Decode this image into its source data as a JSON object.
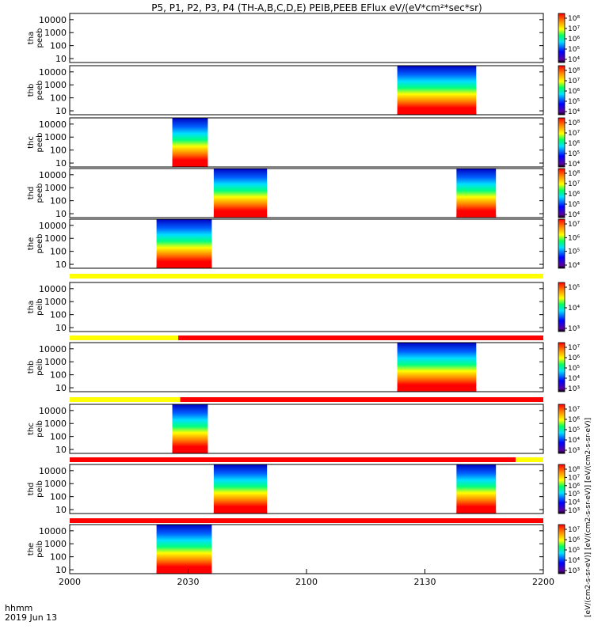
{
  "title": "P5, P1, P2, P3, P4 (TH-A,B,C,D,E) PEIB,PEEB EFlux eV/(eV*cm²*sec*sr)",
  "time_label": "hhmm",
  "date_label": "2019 Jun 13",
  "colorbar_unit_label": "[eV/(cm2-s-sr-eV)] [eV/(cm2-s-sr-eV)] [eV/(cm2-s-sr-eV)]",
  "chart_data": {
    "type": "heatmap",
    "x_axis": {
      "ticks": [
        "2000",
        "2030",
        "2100",
        "2130",
        "2200"
      ],
      "range_minutes": [
        0,
        120
      ],
      "tick_minutes": [
        0,
        30,
        60,
        90,
        120
      ]
    },
    "y_axis": {
      "scale": "log",
      "range": [
        5,
        30000
      ],
      "tick_labels": [
        "10",
        "100",
        "1000",
        "10000"
      ],
      "tick_values": [
        10,
        100,
        1000,
        10000
      ]
    },
    "colormap": "rainbow",
    "panels": [
      {
        "probe": "tha",
        "product": "peeb",
        "intervals": [],
        "cb_labels": [
          "10⁸",
          "10⁷",
          "10⁶",
          "10⁵",
          "10⁴"
        ],
        "status_bar": null
      },
      {
        "probe": "thb",
        "product": "peeb",
        "intervals": [
          [
            83,
            103
          ]
        ],
        "cb_labels": [
          "10⁸",
          "10⁷",
          "10⁶",
          "10⁵",
          "10⁴"
        ],
        "status_bar": null
      },
      {
        "probe": "thc",
        "product": "peeb",
        "intervals": [
          [
            26,
            35
          ]
        ],
        "cb_labels": [
          "10⁸",
          "10⁷",
          "10⁶",
          "10⁵",
          "10⁴"
        ],
        "status_bar": null
      },
      {
        "probe": "thd",
        "product": "peeb",
        "intervals": [
          [
            36.5,
            50
          ],
          [
            98,
            108
          ]
        ],
        "cb_labels": [
          "10⁸",
          "10⁷",
          "10⁶",
          "10⁵",
          "10⁴"
        ],
        "status_bar": null
      },
      {
        "probe": "the",
        "product": "peeb",
        "intervals": [
          [
            22,
            36
          ]
        ],
        "cb_labels": [
          "10⁷",
          "10⁶",
          "10⁵",
          "10⁴"
        ],
        "status_bar": null
      },
      {
        "probe": "tha",
        "product": "peib",
        "intervals": [],
        "cb_labels": [
          "10⁵",
          "10⁴",
          "10³"
        ],
        "status_bar": [
          {
            "from": 0,
            "to": 120,
            "color": "#ffff00"
          }
        ]
      },
      {
        "probe": "thb",
        "product": "peib",
        "intervals": [
          [
            83,
            103
          ]
        ],
        "cb_labels": [
          "10⁷",
          "10⁶",
          "10⁵",
          "10⁴",
          "10³"
        ],
        "status_bar": [
          {
            "from": 0,
            "to": 27.5,
            "color": "#ffff00"
          },
          {
            "from": 27.5,
            "to": 120,
            "color": "#ff0000"
          }
        ]
      },
      {
        "probe": "thc",
        "product": "peib",
        "intervals": [
          [
            26,
            35
          ]
        ],
        "cb_labels": [
          "10⁷",
          "10⁶",
          "10⁵",
          "10⁴",
          "10³"
        ],
        "status_bar": [
          {
            "from": 0,
            "to": 28,
            "color": "#ffff00"
          },
          {
            "from": 28,
            "to": 120,
            "color": "#ff0000"
          }
        ]
      },
      {
        "probe": "thd",
        "product": "peib",
        "intervals": [
          [
            36.5,
            50
          ],
          [
            98,
            108
          ]
        ],
        "cb_labels": [
          "10⁸",
          "10⁷",
          "10⁶",
          "10⁵",
          "10⁴",
          "10³"
        ],
        "status_bar": [
          {
            "from": 0,
            "to": 113,
            "color": "#ff0000"
          },
          {
            "from": 113,
            "to": 120,
            "color": "#ffff00"
          }
        ]
      },
      {
        "probe": "the",
        "product": "peib",
        "intervals": [
          [
            22,
            36
          ]
        ],
        "cb_labels": [
          "10⁷",
          "10⁶",
          "10⁵",
          "10⁴",
          "10³"
        ],
        "status_bar": [
          {
            "from": 0,
            "to": 120,
            "color": "#ff0000"
          }
        ]
      }
    ]
  }
}
